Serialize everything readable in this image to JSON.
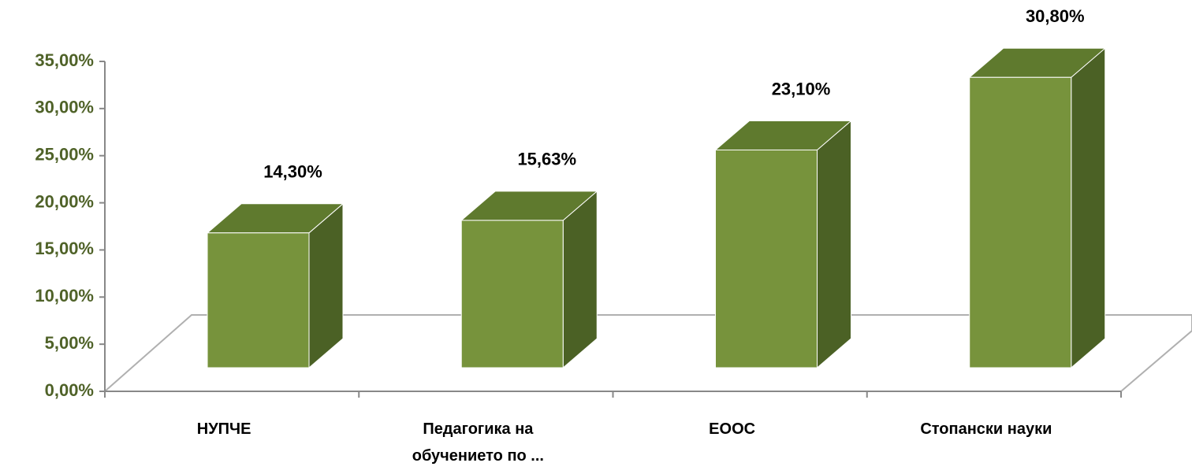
{
  "chart_data": {
    "type": "bar3d",
    "categories": [
      "НУПЧЕ",
      "Педагогика на обучението по ...",
      "ЕООС",
      "Стопански науки"
    ],
    "values": [
      14.3,
      15.63,
      23.1,
      30.8
    ],
    "value_labels": [
      "14,30%",
      "15,63%",
      "23,10%",
      "30,80%"
    ],
    "color": "#77933c",
    "ylim": [
      0,
      35
    ],
    "yticks": [
      {
        "value": 0,
        "label": "0,00%"
      },
      {
        "value": 5,
        "label": "5,00%"
      },
      {
        "value": 10,
        "label": "10,00%"
      },
      {
        "value": 15,
        "label": "15,00%"
      },
      {
        "value": 20,
        "label": "20,00%"
      },
      {
        "value": 25,
        "label": "25,00%"
      },
      {
        "value": 30,
        "label": "30,00%"
      },
      {
        "value": 35,
        "label": "35,00%"
      }
    ]
  }
}
